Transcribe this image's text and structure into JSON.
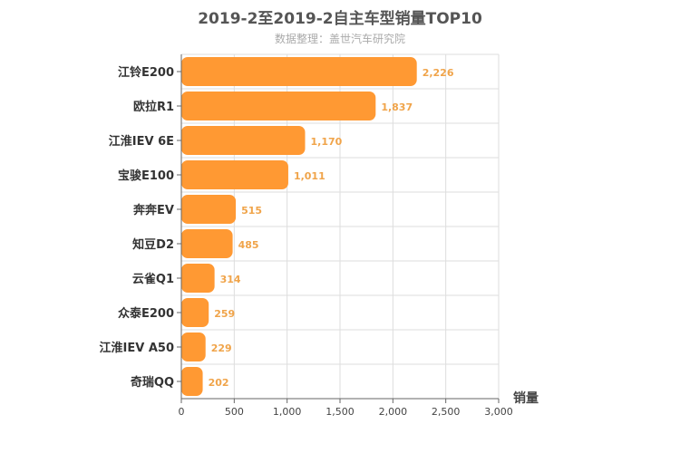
{
  "chart_data": {
    "type": "bar",
    "orientation": "horizontal",
    "title": "2019-2至2019-2自主车型销量TOP10",
    "subtitle": "数据整理：盖世汽车研究院",
    "xlabel": "销量",
    "ylabel": "",
    "xlim": [
      0,
      3000
    ],
    "x_ticks": [
      "0",
      "500",
      "1,000",
      "1,500",
      "2,000",
      "2,500",
      "3,000"
    ],
    "tick_values": [
      0,
      500,
      1000,
      1500,
      2000,
      2500,
      3000
    ],
    "categories": [
      "江铃E200",
      "欧拉R1",
      "江淮IEV 6E",
      "宝骏E100",
      "奔奔EV",
      "知豆D2",
      "云雀Q1",
      "众泰E200",
      "江淮IEV A50",
      "奇瑞QQ"
    ],
    "values": [
      2226,
      1837,
      1170,
      1011,
      515,
      485,
      314,
      259,
      229,
      202
    ],
    "value_labels": [
      "2,226",
      "1,837",
      "1,170",
      "1,011",
      "515",
      "485",
      "314",
      "259",
      "229",
      "202"
    ],
    "grid": true,
    "colors": {
      "bar": "#ff9933",
      "label": "#f0a44a",
      "grid": "#dddddd",
      "axis": "#666666"
    }
  }
}
